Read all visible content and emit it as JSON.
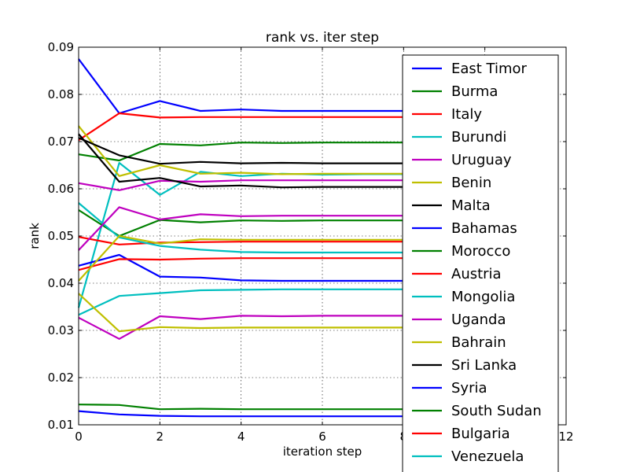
{
  "chart_data": {
    "type": "line",
    "title": "rank vs. iter step",
    "xlabel": "iteration step",
    "ylabel": "rank",
    "xlim": [
      0,
      12
    ],
    "ylim": [
      0.01,
      0.09
    ],
    "xticks": [
      0,
      2,
      4,
      6,
      8,
      10,
      12
    ],
    "xtick_labels": [
      "0",
      "2",
      "4",
      "6",
      "8",
      "10",
      "12"
    ],
    "yticks": [
      0.01,
      0.02,
      0.03,
      0.04,
      0.05,
      0.06,
      0.07,
      0.08,
      0.09
    ],
    "ytick_labels": [
      "0.01",
      "0.02",
      "0.03",
      "0.04",
      "0.05",
      "0.06",
      "0.07",
      "0.08",
      "0.09"
    ],
    "grid": true,
    "legend_position": "right (overlapping plot)",
    "x": [
      0,
      1,
      2,
      3,
      4,
      5,
      6,
      7,
      8,
      9,
      10
    ],
    "series": [
      {
        "name": "East Timor",
        "color": "#0000ff",
        "values": [
          0.0875,
          0.076,
          0.0786,
          0.0765,
          0.0768,
          0.0765,
          0.0765,
          0.0765,
          0.0765,
          0.0765,
          0.0765
        ]
      },
      {
        "name": "Burma",
        "color": "#008000",
        "values": [
          0.0673,
          0.066,
          0.0695,
          0.0692,
          0.0698,
          0.0697,
          0.0698,
          0.0698,
          0.0698,
          0.0698,
          0.0698
        ]
      },
      {
        "name": "Italy",
        "color": "#ff0000",
        "values": [
          0.0703,
          0.076,
          0.0751,
          0.0752,
          0.0752,
          0.0752,
          0.0752,
          0.0752,
          0.0752,
          0.0752,
          0.0752
        ]
      },
      {
        "name": "Burundi",
        "color": "#00bfbf",
        "values": [
          0.0348,
          0.0655,
          0.0587,
          0.0636,
          0.0627,
          0.0632,
          0.063,
          0.0631,
          0.0631,
          0.0631,
          0.0631
        ]
      },
      {
        "name": "Uruguay",
        "color": "#bf00bf",
        "values": [
          0.0612,
          0.0597,
          0.0617,
          0.0615,
          0.0618,
          0.0618,
          0.0618,
          0.0618,
          0.0618,
          0.0618,
          0.0618
        ]
      },
      {
        "name": "Benin",
        "color": "#bfbf00",
        "values": [
          0.0733,
          0.0627,
          0.065,
          0.0632,
          0.0634,
          0.0631,
          0.0632,
          0.0632,
          0.0632,
          0.0632,
          0.0632
        ]
      },
      {
        "name": "Malta",
        "color": "#000000",
        "values": [
          0.0716,
          0.0615,
          0.0623,
          0.0605,
          0.0607,
          0.0603,
          0.0604,
          0.0604,
          0.0604,
          0.0604,
          0.0604
        ]
      },
      {
        "name": "Bahamas",
        "color": "#0000ff",
        "values": [
          0.0437,
          0.046,
          0.0414,
          0.0412,
          0.0406,
          0.0405,
          0.0405,
          0.0405,
          0.0405,
          0.0405,
          0.0405
        ]
      },
      {
        "name": "Morocco",
        "color": "#008000",
        "values": [
          0.0555,
          0.05,
          0.0534,
          0.0529,
          0.0533,
          0.0532,
          0.0533,
          0.0533,
          0.0533,
          0.0533,
          0.0533
        ]
      },
      {
        "name": "Austria",
        "color": "#ff0000",
        "values": [
          0.0428,
          0.0451,
          0.045,
          0.0452,
          0.0453,
          0.0453,
          0.0453,
          0.0453,
          0.0453,
          0.0453,
          0.0453
        ]
      },
      {
        "name": "Mongolia",
        "color": "#00bfbf",
        "values": [
          0.0333,
          0.0373,
          0.0379,
          0.0385,
          0.0386,
          0.0387,
          0.0387,
          0.0387,
          0.0387,
          0.0387,
          0.0387
        ]
      },
      {
        "name": "Uganda",
        "color": "#bf00bf",
        "values": [
          0.0327,
          0.0282,
          0.033,
          0.0324,
          0.0331,
          0.033,
          0.0331,
          0.0331,
          0.0331,
          0.0331,
          0.0331
        ]
      },
      {
        "name": "Bahrain",
        "color": "#bfbf00",
        "values": [
          0.0378,
          0.0298,
          0.0307,
          0.0305,
          0.0306,
          0.0306,
          0.0306,
          0.0306,
          0.0306,
          0.0306,
          0.0306
        ]
      },
      {
        "name": "Sri Lanka",
        "color": "#000000",
        "values": [
          0.0708,
          0.0671,
          0.0653,
          0.0657,
          0.0654,
          0.0655,
          0.0654,
          0.0654,
          0.0654,
          0.0654,
          0.0654
        ]
      },
      {
        "name": "Syria",
        "color": "#0000ff",
        "values": [
          0.0129,
          0.0122,
          0.0119,
          0.0118,
          0.0118,
          0.0118,
          0.0118,
          0.0118,
          0.0118,
          0.0118,
          0.0118
        ]
      },
      {
        "name": "South Sudan",
        "color": "#008000",
        "values": [
          0.0143,
          0.0142,
          0.0133,
          0.0134,
          0.0133,
          0.0133,
          0.0133,
          0.0133,
          0.0133,
          0.0133,
          0.0133
        ]
      },
      {
        "name": "Bulgaria",
        "color": "#ff0000",
        "values": [
          0.0498,
          0.0482,
          0.0486,
          0.0487,
          0.0488,
          0.0488,
          0.0488,
          0.0488,
          0.0488,
          0.0488,
          0.0488
        ]
      },
      {
        "name": "Venezuela",
        "color": "#00bfbf",
        "values": [
          0.057,
          0.0497,
          0.0479,
          0.0471,
          0.0466,
          0.0465,
          0.0465,
          0.0465,
          0.0465,
          0.0465,
          0.0465
        ]
      },
      {
        "name": "",
        "color": "#bf00bf",
        "values": [
          0.047,
          0.0561,
          0.0535,
          0.0546,
          0.0542,
          0.0543,
          0.0543,
          0.0543,
          0.0543,
          0.0543,
          0.0543
        ]
      },
      {
        "name": "",
        "color": "#bfbf00",
        "values": [
          0.0405,
          0.05,
          0.0484,
          0.0493,
          0.0492,
          0.0492,
          0.0492,
          0.0492,
          0.0492,
          0.0492,
          0.0492
        ]
      }
    ]
  }
}
